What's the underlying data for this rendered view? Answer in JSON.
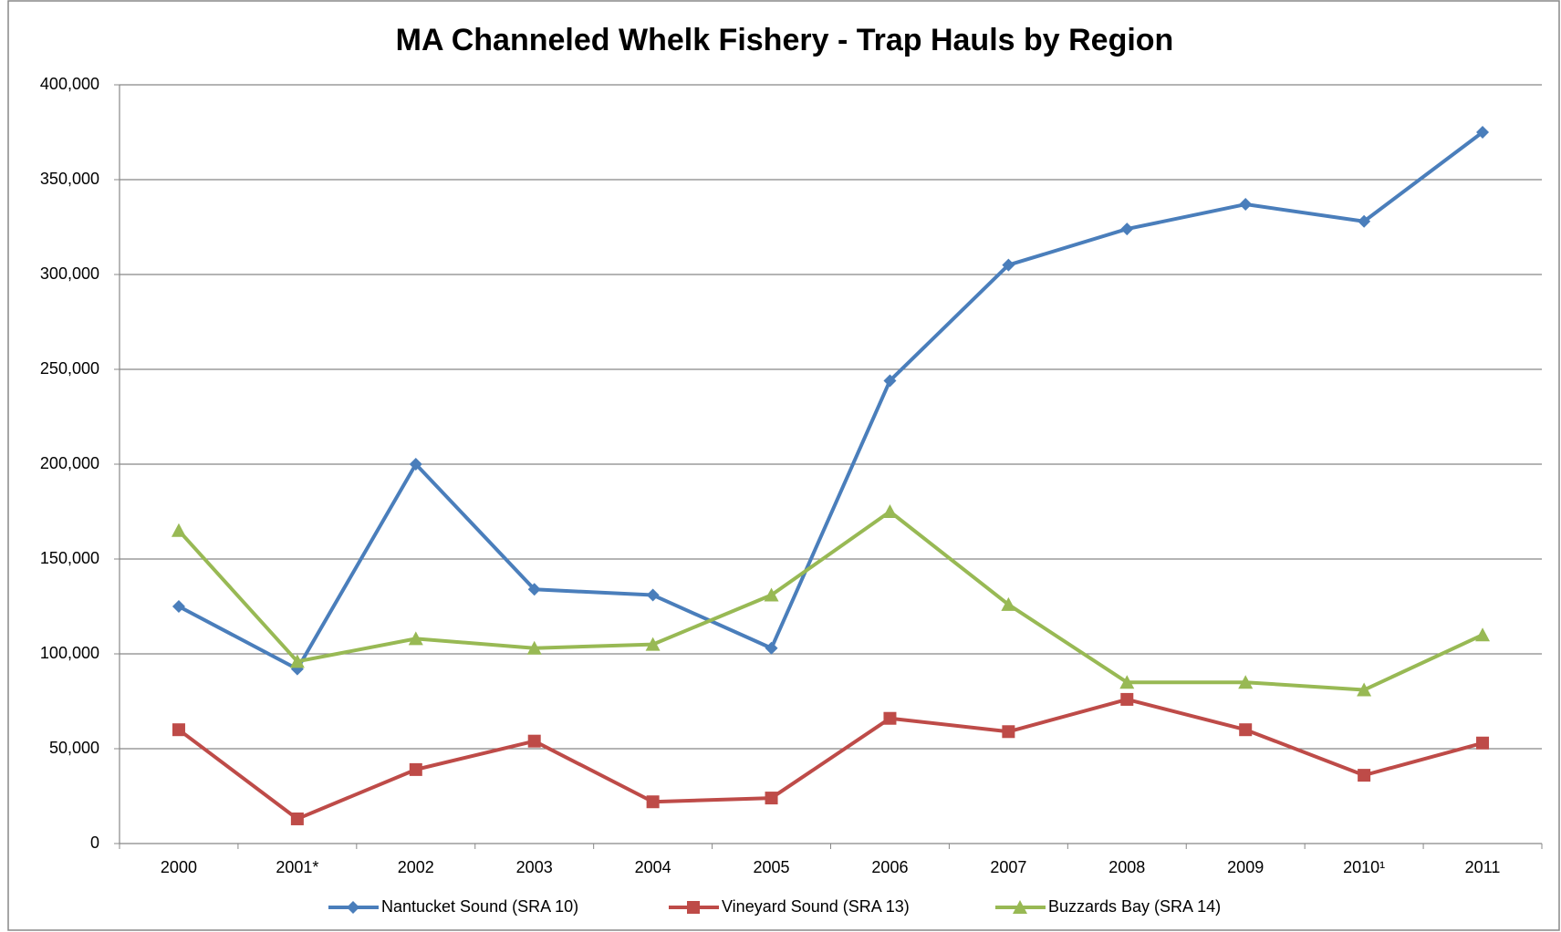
{
  "chart_data": {
    "type": "line",
    "title": "MA Channeled Whelk Fishery - Trap Hauls by Region",
    "categories": [
      "2000",
      "2001*",
      "2002",
      "2003",
      "2004",
      "2005",
      "2006",
      "2007",
      "2008",
      "2009",
      "2010¹",
      "2011"
    ],
    "series": [
      {
        "name": "Nantucket Sound (SRA 10)",
        "color": "#4a7ebb",
        "marker": "diamond",
        "values": [
          125000,
          92000,
          200000,
          134000,
          131000,
          103000,
          244000,
          305000,
          324000,
          337000,
          328000,
          375000
        ]
      },
      {
        "name": "Vineyard Sound (SRA 13)",
        "color": "#be4b48",
        "marker": "square",
        "values": [
          60000,
          13000,
          39000,
          54000,
          22000,
          24000,
          66000,
          59000,
          76000,
          60000,
          36000,
          53000
        ]
      },
      {
        "name": "Buzzards Bay (SRA 14)",
        "color": "#98b954",
        "marker": "triangle",
        "values": [
          165000,
          96000,
          108000,
          103000,
          105000,
          131000,
          175000,
          126000,
          85000,
          85000,
          81000,
          110000
        ]
      }
    ],
    "ylim": [
      0,
      400000
    ],
    "yticks": [
      0,
      {
        "value": 50000,
        "label": "50,000"
      },
      {
        "value": 100000,
        "label": "100,000"
      },
      {
        "value": 150000,
        "label": "150,000"
      },
      {
        "value": 200000,
        "label": "200,000"
      },
      {
        "value": 250000,
        "label": "250,000"
      },
      {
        "value": 300000,
        "label": "300,000"
      },
      {
        "value": 350000,
        "label": "350,000"
      },
      {
        "value": 400000,
        "label": "400,000"
      }
    ],
    "grid": true,
    "legend": "bottom"
  }
}
